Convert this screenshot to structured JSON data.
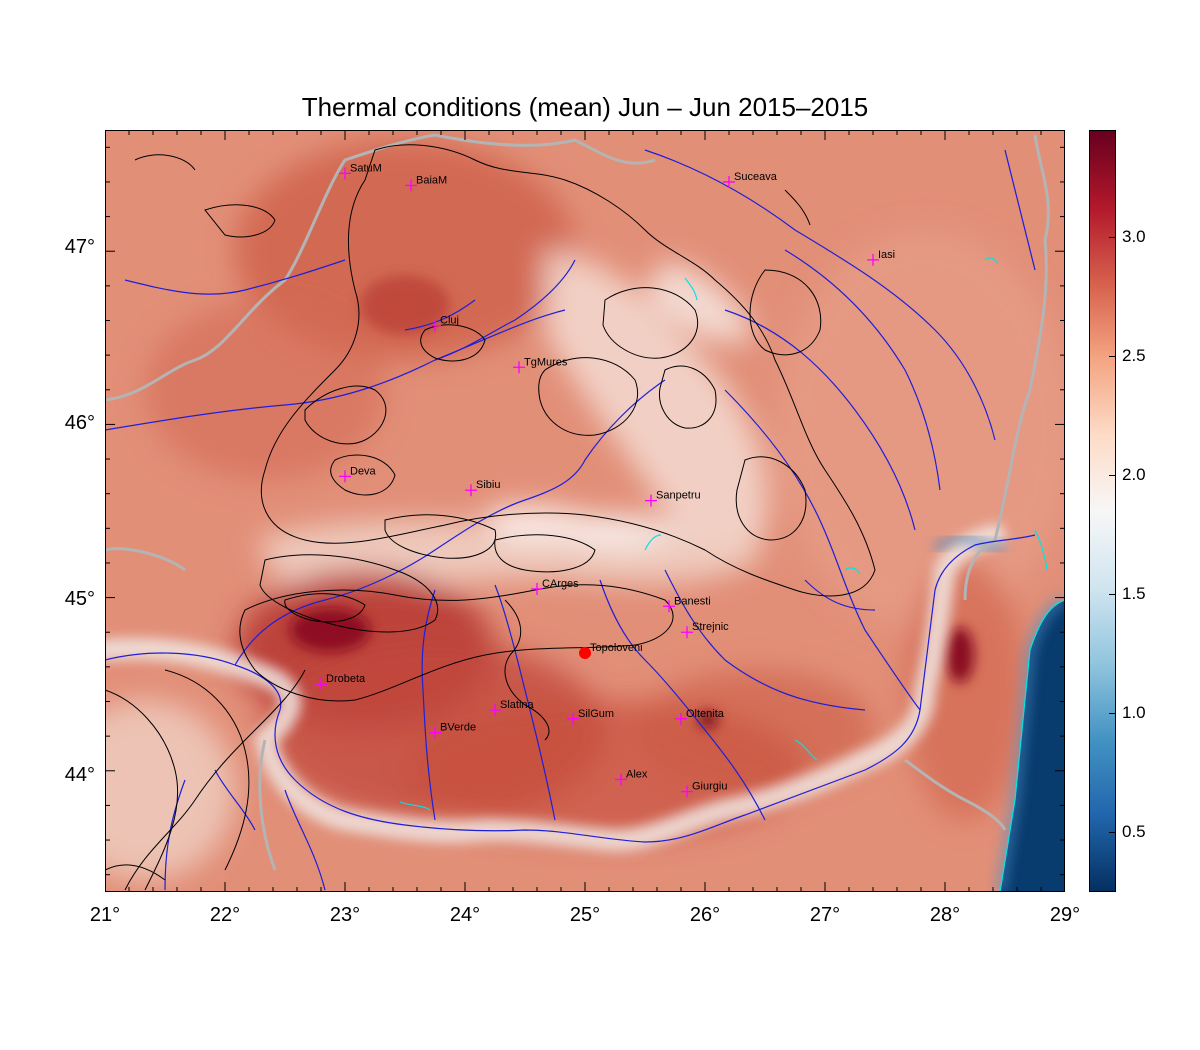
{
  "title": "Thermal conditions (mean) Jun – Jun  2015–2015",
  "map": {
    "lon_range": [
      21,
      29
    ],
    "lat_range": [
      43.3,
      47.7
    ],
    "lon_ticks": [
      "21°",
      "22°",
      "23°",
      "24°",
      "25°",
      "26°",
      "27°",
      "28°",
      "29°"
    ],
    "lat_ticks": [
      "47°",
      "46°",
      "45°",
      "44°"
    ],
    "highlight_location": "Topoloveni",
    "highlight_color": "#ff0000",
    "city_marker_color": "#ff00ff",
    "cities": [
      {
        "name": "SatuM",
        "lon": 23.0,
        "lat": 47.45
      },
      {
        "name": "BaiaM",
        "lon": 23.55,
        "lat": 47.38
      },
      {
        "name": "Suceava",
        "lon": 26.2,
        "lat": 47.4
      },
      {
        "name": "Iasi",
        "lon": 27.4,
        "lat": 46.95
      },
      {
        "name": "Cluj",
        "lon": 23.75,
        "lat": 46.57
      },
      {
        "name": "TgMures",
        "lon": 24.45,
        "lat": 46.33
      },
      {
        "name": "Deva",
        "lon": 23.0,
        "lat": 45.7
      },
      {
        "name": "Sibiu",
        "lon": 24.05,
        "lat": 45.62
      },
      {
        "name": "Sanpetru",
        "lon": 25.55,
        "lat": 45.56
      },
      {
        "name": "CArges",
        "lon": 24.6,
        "lat": 45.05
      },
      {
        "name": "Banesti",
        "lon": 25.7,
        "lat": 44.95
      },
      {
        "name": "Strejnic",
        "lon": 25.85,
        "lat": 44.8
      },
      {
        "name": "Topoloveni",
        "lon": 25.0,
        "lat": 44.68
      },
      {
        "name": "Drobeta",
        "lon": 22.8,
        "lat": 44.5
      },
      {
        "name": "Slatina",
        "lon": 24.25,
        "lat": 44.35
      },
      {
        "name": "SilGum",
        "lon": 24.9,
        "lat": 44.3
      },
      {
        "name": "Oltenita",
        "lon": 25.8,
        "lat": 44.3
      },
      {
        "name": "BVerde",
        "lon": 23.75,
        "lat": 44.22
      },
      {
        "name": "Alex",
        "lon": 25.3,
        "lat": 43.95
      },
      {
        "name": "Giurgiu",
        "lon": 25.85,
        "lat": 43.88
      }
    ]
  },
  "colorbar": {
    "range": [
      0.25,
      3.45
    ],
    "ticks": [
      "3.0",
      "2.5",
      "2.0",
      "1.5",
      "1.0",
      "0.5"
    ],
    "tick_values": [
      3.0,
      2.5,
      2.0,
      1.5,
      1.0,
      0.5
    ],
    "colors": [
      "#053061",
      "#2166ac",
      "#4393c3",
      "#92c5de",
      "#d1e5f0",
      "#f7f7f7",
      "#fddbc7",
      "#f4a582",
      "#d6604d",
      "#b2182b",
      "#67001f"
    ]
  },
  "colors": {
    "river": "#1f1fd8",
    "border": "#b4b4b4",
    "contour": "#000000",
    "water_body": "#00e5e5"
  }
}
